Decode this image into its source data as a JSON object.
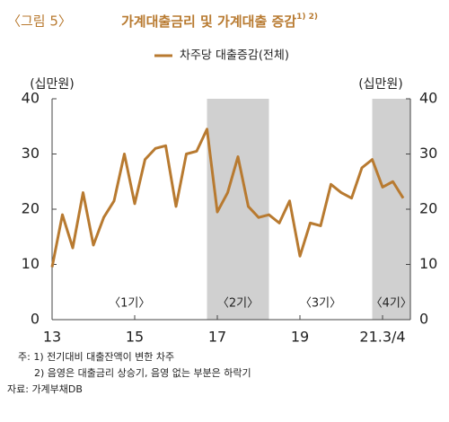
{
  "figure_label": "〈그림 5〉",
  "chart_data": {
    "type": "line",
    "title": "가계대출금리 및 가계대출 증감",
    "title_note": "1) 2)",
    "y_label": "(십만원)",
    "y2_label": "(십만원)",
    "categories": [
      "13",
      null,
      null,
      null,
      null,
      null,
      null,
      null,
      "15",
      null,
      null,
      null,
      null,
      null,
      null,
      null,
      "17",
      null,
      null,
      null,
      null,
      null,
      null,
      null,
      "19",
      null,
      null,
      null,
      null,
      null,
      null,
      null,
      "21.3/4",
      null,
      null
    ],
    "series": [
      {
        "name": "차주당 대출증감(전체)",
        "color": "#b87a30",
        "values": [
          9.5,
          19,
          13,
          23,
          13.5,
          18.5,
          21.5,
          30,
          21,
          29,
          31,
          31.5,
          20.5,
          30,
          30.5,
          34.5,
          19.5,
          23,
          29.5,
          20.5,
          18.5,
          19,
          17.5,
          21.5,
          11.5,
          17.5,
          17,
          24.5,
          23,
          22,
          27.5,
          29,
          24,
          25,
          22
        ]
      }
    ],
    "ylim": [
      0,
      40
    ],
    "yticks": [
      0,
      10,
      20,
      30,
      40
    ],
    "y2lim": [
      0,
      40
    ],
    "y2ticks": [
      0,
      10,
      20,
      30,
      40
    ],
    "periods": [
      {
        "label": "〈1기〉",
        "start": 0,
        "end": 15,
        "shaded": false
      },
      {
        "label": "〈2기〉",
        "start": 15,
        "end": 21,
        "shaded": true
      },
      {
        "label": "〈3기〉",
        "start": 21,
        "end": 31,
        "shaded": false
      },
      {
        "label": "〈4기〉",
        "start": 31,
        "end": 34,
        "shaded": true
      }
    ]
  },
  "notes": [
    "주: 1) 전기대비 대출잔액이 변한 차주",
    "2) 음영은 대출금리 상승기, 음영 없는 부분은 하락기",
    "자료: 가계부채DB"
  ]
}
